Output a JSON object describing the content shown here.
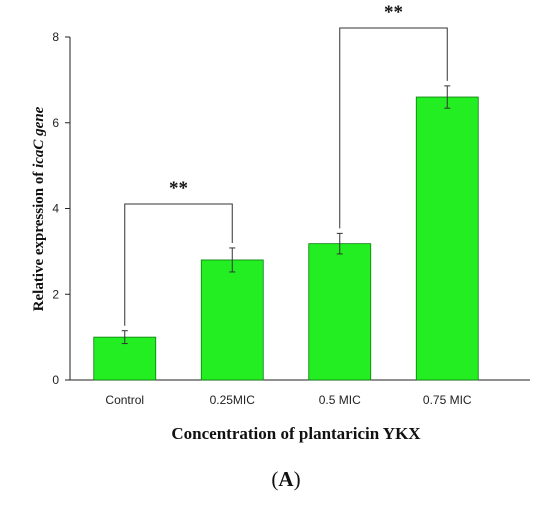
{
  "chart_data": {
    "type": "bar",
    "categories": [
      "Control",
      "0.25MIC",
      "0.5 MIC",
      "0.75 MIC"
    ],
    "values": [
      1.0,
      2.8,
      3.18,
      6.6
    ],
    "errors": [
      0.15,
      0.28,
      0.24,
      0.26
    ],
    "ylim": [
      0,
      8
    ],
    "yticks": [
      0,
      2,
      4,
      6,
      8
    ],
    "ylabel_prefix": "Relative expression of ",
    "ylabel_italic": "icaC gene",
    "xlabel": "Concentration of plantaricin YKX",
    "bar_color": "#22ee22",
    "bar_edge_color": "#0b7a0b",
    "significance": [
      {
        "from": 0,
        "to": 1,
        "label": "**"
      },
      {
        "from": 2,
        "to": 3,
        "label": "**"
      }
    ],
    "grid": false
  },
  "panel_label": {
    "open": "(",
    "letter": "A",
    "close": ")"
  }
}
